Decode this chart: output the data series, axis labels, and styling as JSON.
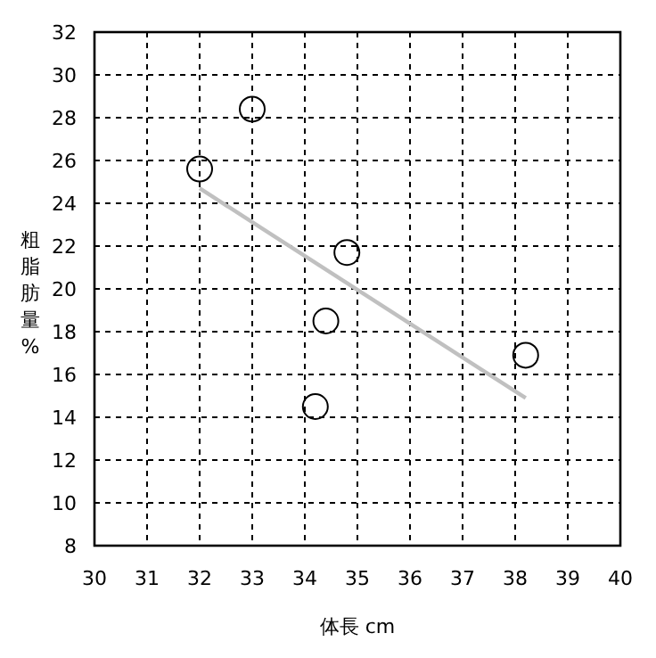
{
  "chart_data": {
    "type": "scatter",
    "xlabel": "体長 cm",
    "ylabel": "粗脂肪量%",
    "xlim": [
      30,
      40
    ],
    "ylim": [
      8,
      32
    ],
    "xticks": [
      30,
      31,
      32,
      33,
      34,
      35,
      36,
      37,
      38,
      39,
      40
    ],
    "yticks": [
      8,
      10,
      12,
      14,
      16,
      18,
      20,
      22,
      24,
      26,
      28,
      30,
      32
    ],
    "grid": true,
    "series": [
      {
        "type": "scatter",
        "color": "#000000",
        "marker": "circle",
        "x": [
          32,
          33,
          34.8,
          34.4,
          34.2,
          38.2
        ],
        "values": [
          25.6,
          28.4,
          21.7,
          18.5,
          14.5,
          16.9
        ]
      },
      {
        "type": "line",
        "color": "#c0c0c0",
        "marker": "none",
        "x": [
          32,
          38.2
        ],
        "values": [
          24.7,
          14.9
        ]
      }
    ]
  }
}
